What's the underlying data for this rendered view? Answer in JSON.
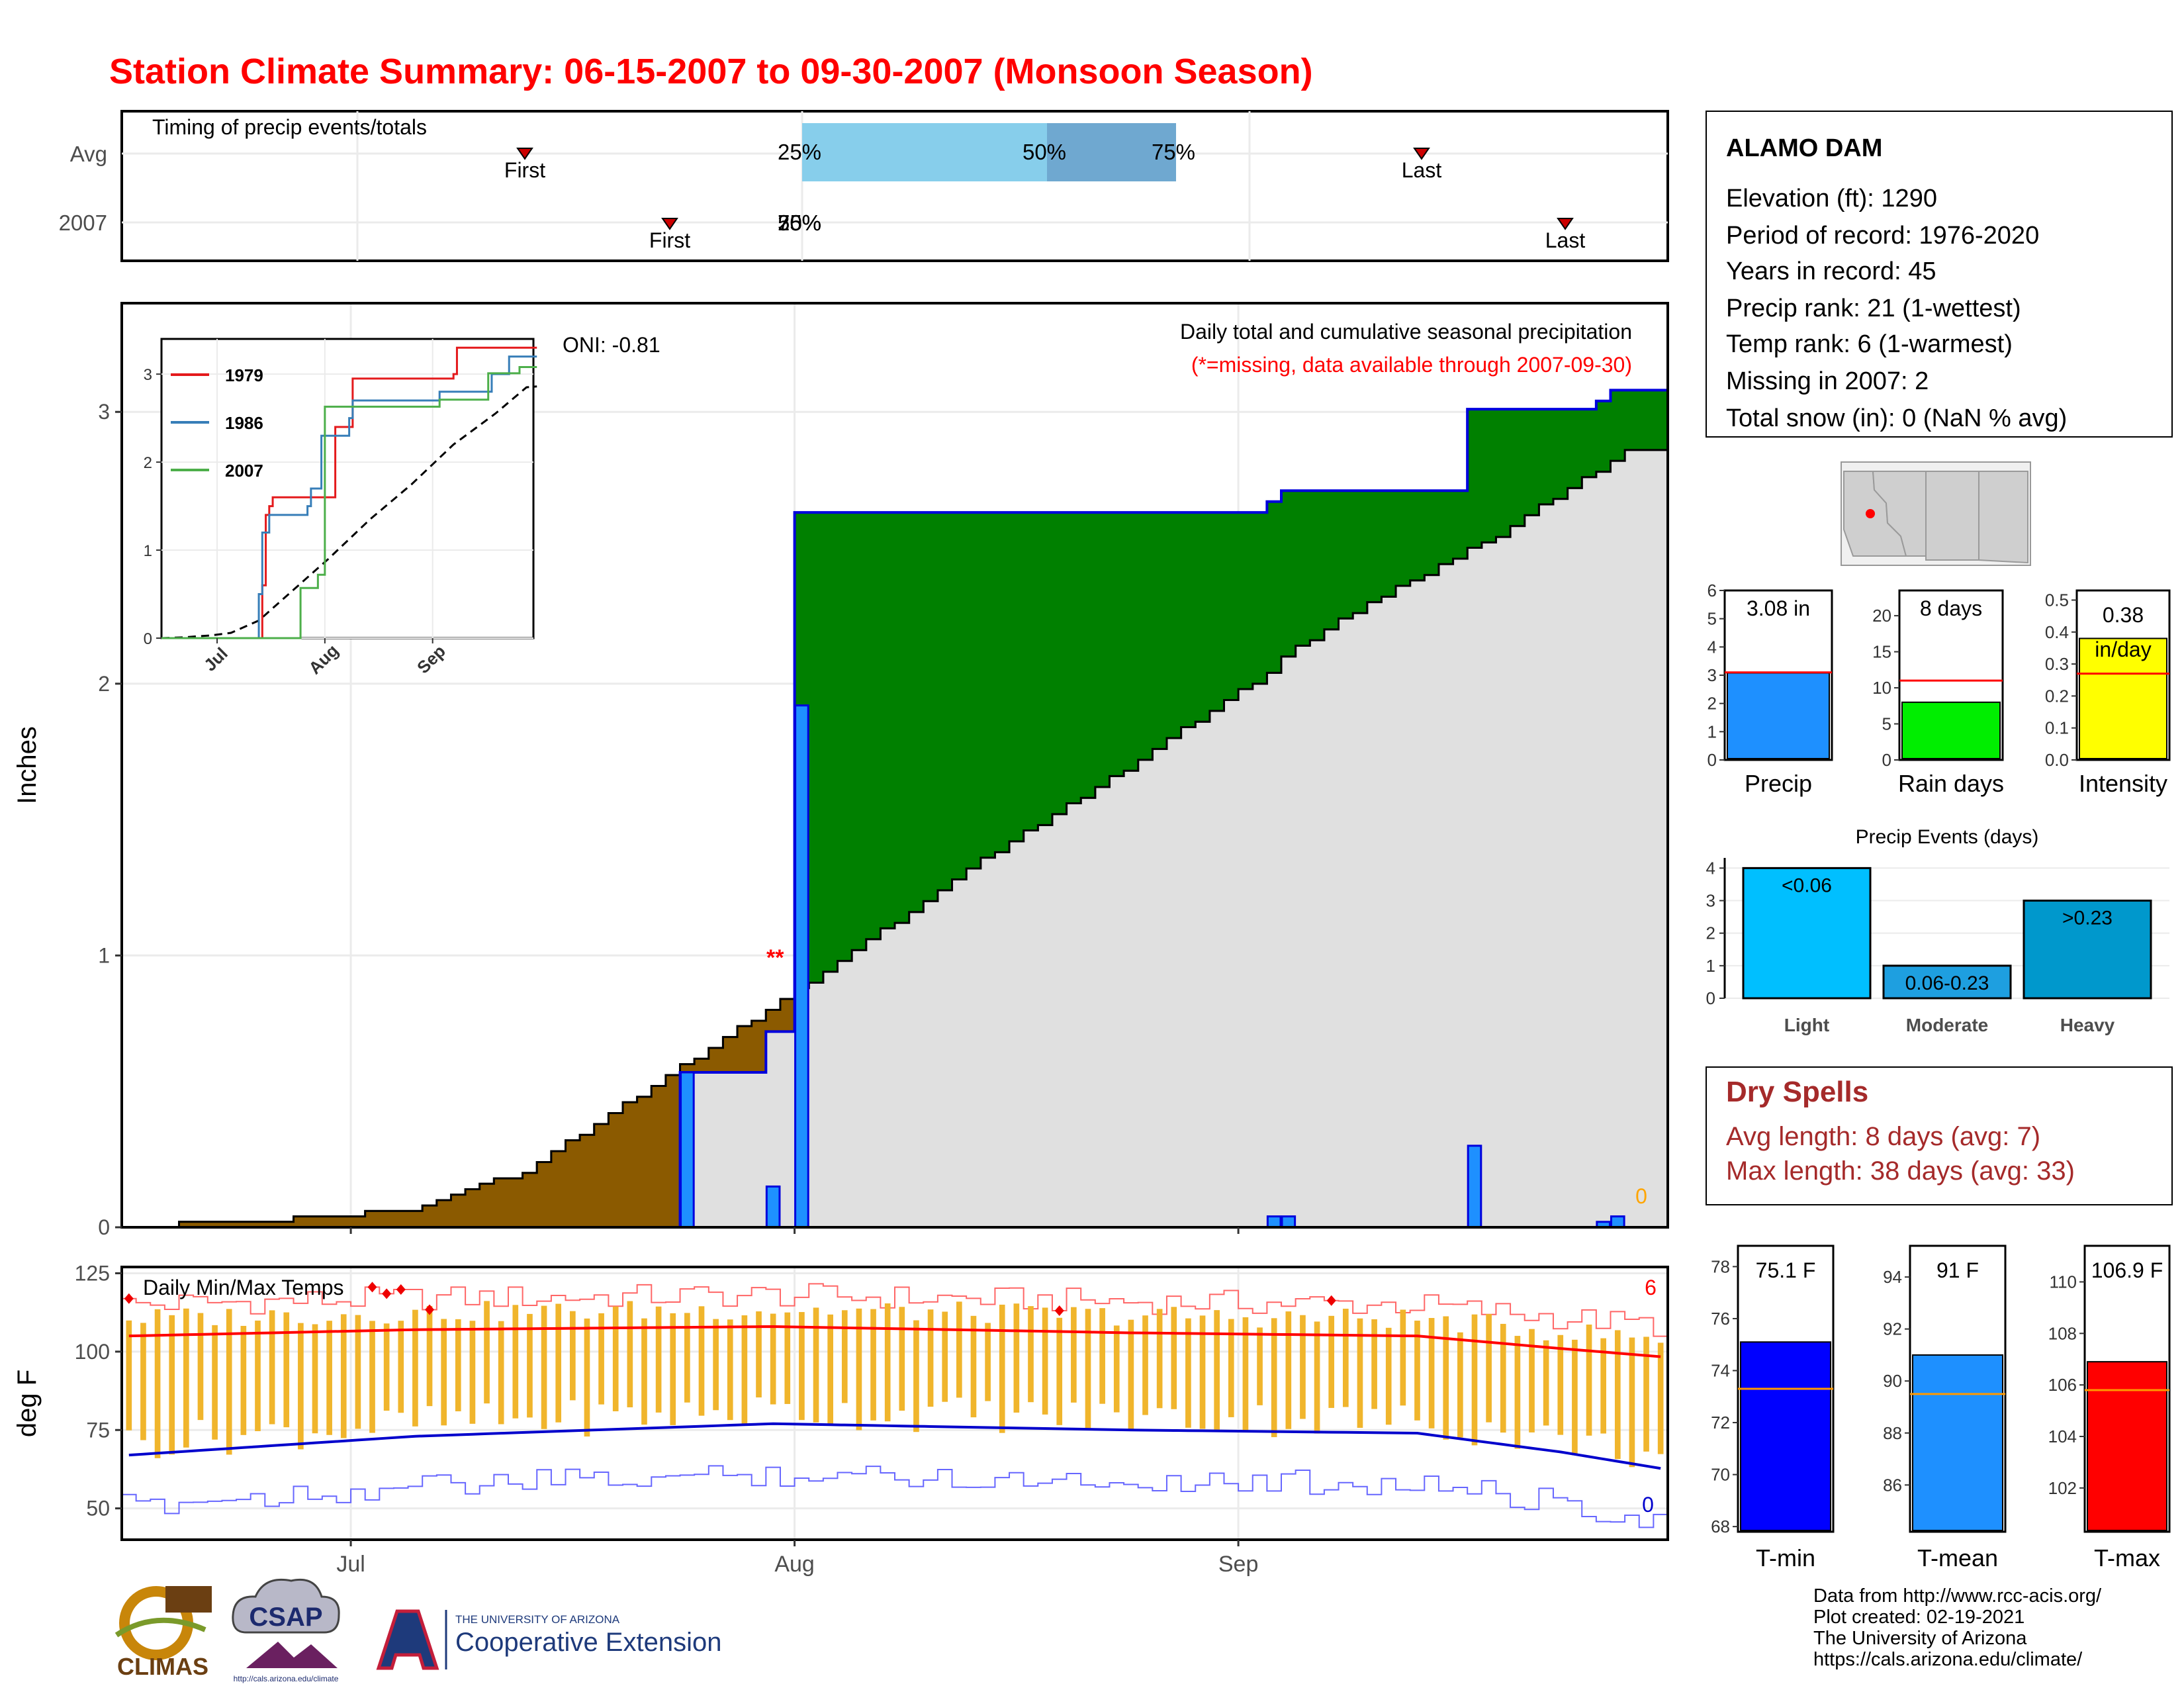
{
  "title": "Station Climate Summary: 06-15-2007 to 09-30-2007 (Monsoon Season)",
  "timing": {
    "label": "Timing of precip events/totals",
    "rows": [
      "Avg",
      "2007"
    ],
    "first_label": "First",
    "last_label": "Last",
    "pct_25": "25%",
    "pct_50": "50%",
    "pct_75": "75%",
    "overlap_2007": "25%",
    "overlap_2007b": "50%",
    "overlap_2007c": "75%"
  },
  "main": {
    "ylabel": "Inches",
    "oni": "ONI: -0.81",
    "caption": "Daily total and cumulative seasonal precipitation",
    "missing_note": "(*=missing, data available through 2007-09-30)",
    "missing_marks": "**",
    "zero_label": "0",
    "yticks": [
      "0",
      "1",
      "2",
      "3"
    ],
    "xticks": [
      "Jul",
      "Aug",
      "Sep"
    ]
  },
  "inset": {
    "legend": [
      {
        "name": "1979",
        "color": "#e41a1c"
      },
      {
        "name": "1986",
        "color": "#377eb8"
      },
      {
        "name": "2007",
        "color": "#4daf4a"
      }
    ],
    "yticks": [
      "0",
      "1",
      "2",
      "3"
    ],
    "xticks": [
      "Jul",
      "Aug",
      "Sep"
    ]
  },
  "temps": {
    "label": "Daily Min/Max Temps",
    "ylabel": "deg F",
    "yticks": [
      "50",
      "75",
      "100",
      "125"
    ],
    "xticks": [
      "Jul",
      "Aug",
      "Sep"
    ],
    "count_high": "6",
    "count_low": "0"
  },
  "station": {
    "name": "ALAMO DAM",
    "lines": [
      "Elevation (ft): 1290",
      "Period of record: 1976-2020",
      "Years in record: 45",
      "Precip rank: 21 (1-wettest)",
      "Temp rank: 6 (1-warmest)",
      "Missing in 2007: 2",
      "Total snow (in): 0 (NaN % avg)"
    ]
  },
  "mini": {
    "precip": {
      "value": "3.08 in",
      "label": "Precip",
      "yticks": [
        "0",
        "1",
        "2",
        "3",
        "4",
        "5",
        "6"
      ]
    },
    "raindays": {
      "value": "8 days",
      "label": "Rain days",
      "yticks": [
        "0",
        "5",
        "10",
        "15",
        "20"
      ]
    },
    "intensity": {
      "value": "0.38",
      "unit": "in/day",
      "label": "Intensity",
      "yticks": [
        "0.0",
        "0.1",
        "0.2",
        "0.3",
        "0.4",
        "0.5"
      ]
    }
  },
  "events": {
    "title": "Precip Events (days)",
    "yticks": [
      "0",
      "1",
      "2",
      "3",
      "4"
    ],
    "bars": [
      {
        "label": "Light",
        "range": "<0.06",
        "value": 4,
        "color": "#00bfff"
      },
      {
        "label": "Moderate",
        "range": "0.06-0.23",
        "value": 1,
        "color": "#1e9fe0"
      },
      {
        "label": "Heavy",
        "range": ">0.23",
        "value": 3,
        "color": "#0098cc"
      }
    ]
  },
  "dry": {
    "title": "Dry Spells",
    "avg": "Avg length: 8 days (avg: 7)",
    "max": "Max length: 38 days (avg: 33)"
  },
  "tbars": {
    "tmin": {
      "value": "75.1 F",
      "label": "T-min",
      "yticks": [
        "68",
        "70",
        "72",
        "74",
        "76",
        "78"
      ]
    },
    "tmean": {
      "value": "91 F",
      "label": "T-mean",
      "yticks": [
        "86",
        "88",
        "90",
        "92",
        "94"
      ]
    },
    "tmax": {
      "value": "106.9 F",
      "label": "T-max",
      "yticks": [
        "102",
        "104",
        "106",
        "108",
        "110"
      ]
    }
  },
  "footer": [
    "Data from http://www.rcc-acis.org/",
    "Plot created: 02-19-2021",
    "The University of Arizona",
    "https://cals.arizona.edu/climate/"
  ],
  "logos": {
    "climas": "CLIMAS",
    "csap": "CSAP",
    "csap_url": "http://cals.arizona.edu/climate",
    "ua_small": "THE UNIVERSITY OF ARIZONA",
    "ua_big": "Cooperative Extension"
  },
  "chart_data": [
    {
      "type": "area",
      "title": "Daily total and cumulative seasonal precipitation",
      "ylabel": "Inches",
      "ylim": [
        0,
        3.4
      ],
      "x_range": [
        "2007-06-15",
        "2007-09-30"
      ],
      "series": [
        {
          "name": "2007",
          "points": [
            [
              "2007-06-15",
              0
            ],
            [
              "2007-07-23",
              0.0
            ],
            [
              "2007-07-24",
              0.57
            ],
            [
              "2007-07-29",
              0.57
            ],
            [
              "2007-07-30",
              0.72
            ],
            [
              "2007-07-31",
              0.72
            ],
            [
              "2007-08-01",
              2.63
            ],
            [
              "2007-09-02",
              2.63
            ],
            [
              "2007-09-03",
              2.67
            ],
            [
              "2007-09-04",
              2.71
            ],
            [
              "2007-09-16",
              2.71
            ],
            [
              "2007-09-17",
              3.01
            ],
            [
              "2007-09-26",
              3.04
            ],
            [
              "2007-09-27",
              3.08
            ],
            [
              "2007-09-30",
              3.08
            ]
          ]
        }
      ],
      "daily_bars": [
        {
          "date": "2007-07-24",
          "value": 0.57
        },
        {
          "date": "2007-07-30",
          "value": 0.15
        },
        {
          "date": "2007-08-01",
          "value": 1.92
        },
        {
          "date": "2007-09-03",
          "value": 0.04
        },
        {
          "date": "2007-09-04",
          "value": 0.04
        },
        {
          "date": "2007-09-17",
          "value": 0.3
        },
        {
          "date": "2007-09-26",
          "value": 0.02
        },
        {
          "date": "2007-09-27",
          "value": 0.04
        }
      ],
      "average_cumulative": [
        [
          0,
          0.0
        ],
        [
          7,
          0.01
        ],
        [
          10,
          0.02
        ],
        [
          14,
          0.03
        ],
        [
          20,
          0.06
        ],
        [
          28,
          0.2
        ],
        [
          38,
          0.55
        ],
        [
          48,
          0.9
        ],
        [
          60,
          1.35
        ],
        [
          72,
          1.75
        ],
        [
          84,
          2.2
        ],
        [
          96,
          2.55
        ],
        [
          105,
          2.85
        ],
        [
          108,
          2.86
        ]
      ]
    },
    {
      "type": "line",
      "title": "",
      "x": [
        "Jul",
        "Aug",
        "Sep"
      ],
      "ylim": [
        0,
        3.4
      ],
      "series": [
        {
          "name": "1979",
          "points": [
            [
              0,
              0
            ],
            [
              28,
              0
            ],
            [
              29,
              0.6
            ],
            [
              30,
              1.4
            ],
            [
              31,
              1.5
            ],
            [
              32,
              1.6
            ],
            [
              45,
              1.6
            ],
            [
              50,
              2.4
            ],
            [
              55,
              2.95
            ],
            [
              84,
              3.0
            ],
            [
              85,
              3.3
            ],
            [
              108,
              3.3
            ]
          ]
        },
        {
          "name": "1986",
          "points": [
            [
              0,
              0
            ],
            [
              27,
              0
            ],
            [
              28,
              0.5
            ],
            [
              29,
              1.2
            ],
            [
              31,
              1.4
            ],
            [
              42,
              1.5
            ],
            [
              43,
              1.7
            ],
            [
              46,
              2.3
            ],
            [
              54,
              2.5
            ],
            [
              55,
              2.7
            ],
            [
              80,
              2.8
            ],
            [
              95,
              3.0
            ],
            [
              100,
              3.2
            ],
            [
              108,
              3.2
            ]
          ]
        },
        {
          "name": "2007",
          "points": [
            [
              0,
              0
            ],
            [
              39,
              0
            ],
            [
              40,
              0.57
            ],
            [
              45,
              0.72
            ],
            [
              47,
              2.63
            ],
            [
              79,
              2.63
            ],
            [
              80,
              2.71
            ],
            [
              93,
              2.71
            ],
            [
              94,
              3.01
            ],
            [
              103,
              3.08
            ],
            [
              108,
              3.08
            ]
          ]
        }
      ]
    },
    {
      "type": "line",
      "title": "Daily Min/Max Temps",
      "ylabel": "deg F",
      "ylim": [
        40,
        127
      ],
      "x_range": [
        "2007-06-15",
        "2007-09-30"
      ],
      "series": [
        {
          "name": "avg max",
          "points": [
            [
              0,
              105
            ],
            [
              20,
              107
            ],
            [
              45,
              108
            ],
            [
              70,
              106
            ],
            [
              90,
              105
            ],
            [
              100,
              101
            ],
            [
              108,
              98
            ]
          ]
        },
        {
          "name": "avg min",
          "points": [
            [
              0,
              67
            ],
            [
              20,
              73
            ],
            [
              45,
              77
            ],
            [
              70,
              75
            ],
            [
              90,
              74
            ],
            [
              100,
              68
            ],
            [
              108,
              62
            ]
          ]
        }
      ]
    }
  ]
}
